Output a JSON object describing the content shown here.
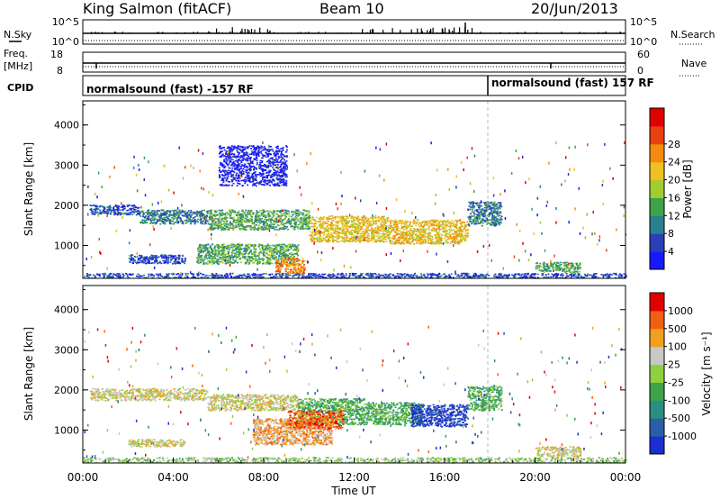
{
  "header": {
    "station": "King Salmon (fitACF)",
    "beam": "Beam 10",
    "date": "20/Jun/2013"
  },
  "param_panels": {
    "nsky_label": "N.Sky",
    "nsky_ticks": [
      "10^5",
      "10^0"
    ],
    "nsearch_label": "N.Search",
    "nsearch_ticks": [
      "10^5",
      "10^0"
    ],
    "freq_label_1": "Freq.",
    "freq_label_2": "[MHz]",
    "freq_ticks": [
      "18",
      "8"
    ],
    "nave_label": "Nave",
    "nave_ticks": [
      "60",
      "0"
    ],
    "cpid_label": "CPID",
    "cpid_segments": [
      {
        "text": "normalsound (fast) -157 RF",
        "start_hour": 0,
        "end_hour": 18
      },
      {
        "text": "normalsound (fast) 157 RF",
        "start_hour": 18,
        "end_hour": 24
      }
    ]
  },
  "chart_data": [
    {
      "type": "heatmap",
      "name": "power",
      "xlabel": "",
      "ylabel": "Slant Range [km]",
      "xlim": [
        0,
        24
      ],
      "ylim": [
        180,
        4600
      ],
      "yticks": [
        1000,
        2000,
        3000,
        4000
      ],
      "colorbar_label": "Power [dB]",
      "colorbar_ticks": [
        "4",
        "8",
        "12",
        "16",
        "20",
        "24",
        "28"
      ],
      "colorbar_colors": [
        "#1818ff",
        "#2a3fb8",
        "#2a7f8f",
        "#3ea34a",
        "#9fce2e",
        "#f0c020",
        "#f58a10",
        "#e84010",
        "#e00000"
      ],
      "bands": [
        {
          "x0": 0.3,
          "x1": 2.5,
          "y0": 1780,
          "y1": 2020,
          "level": 1
        },
        {
          "x0": 2.5,
          "x1": 5.5,
          "y0": 1550,
          "y1": 1900,
          "level": 2
        },
        {
          "x0": 5.5,
          "x1": 10.0,
          "y0": 1400,
          "y1": 1900,
          "level": 3
        },
        {
          "x0": 10.0,
          "x1": 13.5,
          "y0": 1100,
          "y1": 1750,
          "level": 5
        },
        {
          "x0": 13.5,
          "x1": 17.0,
          "y0": 1050,
          "y1": 1650,
          "level": 5
        },
        {
          "x0": 17.0,
          "x1": 18.5,
          "y0": 1500,
          "y1": 2100,
          "level": 2
        },
        {
          "x0": 2.0,
          "x1": 4.5,
          "y0": 560,
          "y1": 780,
          "level": 1
        },
        {
          "x0": 5.0,
          "x1": 9.5,
          "y0": 550,
          "y1": 1050,
          "level": 3
        },
        {
          "x0": 8.5,
          "x1": 9.8,
          "y0": 300,
          "y1": 700,
          "level": 6
        },
        {
          "x0": 0.0,
          "x1": 24.0,
          "y0": 200,
          "y1": 320,
          "level": 1
        },
        {
          "x0": 20.0,
          "x1": 22.0,
          "y0": 350,
          "y1": 600,
          "level": 3
        },
        {
          "x0": 6.0,
          "x1": 9.0,
          "y0": 2500,
          "y1": 3500,
          "level": 0
        }
      ]
    },
    {
      "type": "heatmap",
      "name": "velocity",
      "xlabel": "Time UT",
      "ylabel": "Slant Range [km]",
      "xlim": [
        0,
        24
      ],
      "ylim": [
        180,
        4600
      ],
      "xticks": [
        "00:00",
        "04:00",
        "08:00",
        "12:00",
        "16:00",
        "20:00",
        "00:00"
      ],
      "yticks": [
        1000,
        2000,
        3000,
        4000
      ],
      "colorbar_label": "Velocity [m s⁻¹]",
      "colorbar_ticks": [
        "1000",
        "500",
        "100",
        "25",
        "-25",
        "-100",
        "-500",
        "-1000"
      ],
      "colorbar_colors": [
        "#1c2fd0",
        "#2a5fa8",
        "#2a8f80",
        "#3ea34a",
        "#8fd040",
        "#c8c8c8",
        "#f0a020",
        "#f06010",
        "#e00000"
      ],
      "bands": [
        {
          "x0": 0.3,
          "x1": 5.5,
          "y0": 1750,
          "y1": 2050,
          "level": 5
        },
        {
          "x0": 5.5,
          "x1": 9.5,
          "y0": 1500,
          "y1": 1900,
          "level": 5
        },
        {
          "x0": 9.5,
          "x1": 12.5,
          "y0": 1150,
          "y1": 1800,
          "level": 3
        },
        {
          "x0": 12.5,
          "x1": 15.0,
          "y0": 1150,
          "y1": 1700,
          "level": 3
        },
        {
          "x0": 14.5,
          "x1": 17.0,
          "y0": 1100,
          "y1": 1650,
          "level": 0
        },
        {
          "x0": 7.5,
          "x1": 11.0,
          "y0": 650,
          "y1": 1300,
          "level": 6
        },
        {
          "x0": 9.0,
          "x1": 11.5,
          "y0": 1050,
          "y1": 1500,
          "level": 7
        },
        {
          "x0": 2.0,
          "x1": 4.5,
          "y0": 600,
          "y1": 780,
          "level": 5
        },
        {
          "x0": 0.0,
          "x1": 24.0,
          "y0": 200,
          "y1": 330,
          "level": 4
        },
        {
          "x0": 17.0,
          "x1": 18.5,
          "y0": 1500,
          "y1": 2100,
          "level": 3
        },
        {
          "x0": 20.0,
          "x1": 22.0,
          "y0": 350,
          "y1": 600,
          "level": 5
        }
      ]
    }
  ]
}
